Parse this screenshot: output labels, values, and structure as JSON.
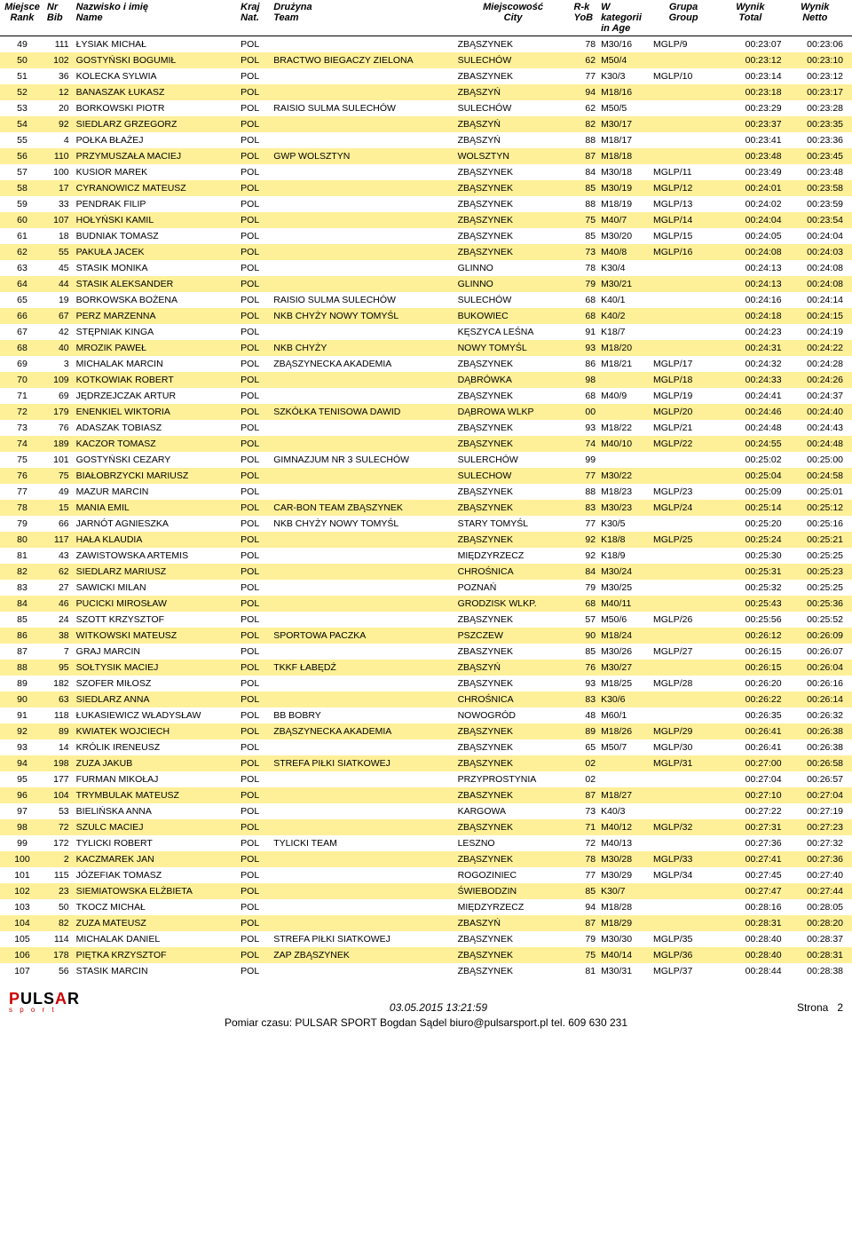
{
  "headers": {
    "rank": {
      "l1": "Miejsce",
      "l2": "Rank"
    },
    "bib": {
      "l1": "Nr",
      "l2": "Bib"
    },
    "name": {
      "l1": "Nazwisko i imię",
      "l2": "Name"
    },
    "nat": {
      "l1": "Kraj",
      "l2": "Nat."
    },
    "team": {
      "l1": "Drużyna",
      "l2": "Team"
    },
    "city": {
      "l1": "Miejscowość",
      "l2": "City"
    },
    "yob": {
      "l1": "R-k",
      "l2": "YoB"
    },
    "age": {
      "l1": "W kategorii",
      "l2": "in Age"
    },
    "grp": {
      "l1": "Grupa",
      "l2": "Group"
    },
    "tot": {
      "l1": "Wynik",
      "l2": "Total"
    },
    "net": {
      "l1": "Wynik",
      "l2": "Netto"
    }
  },
  "rows": [
    {
      "rank": "49",
      "bib": "111",
      "name": "ŁYSIAK MICHAŁ",
      "nat": "POL",
      "team": "",
      "city": "ZBĄSZYNEK",
      "yob": "78",
      "age": "M30/16",
      "grp": "MGLP/9",
      "tot": "00:23:07",
      "net": "00:23:06"
    },
    {
      "rank": "50",
      "bib": "102",
      "name": "GOSTYŃSKI BOGUMIŁ",
      "nat": "POL",
      "team": "BRACTWO BIEGACZY ZIELONA",
      "city": "SULECHÓW",
      "yob": "62",
      "age": "M50/4",
      "grp": "",
      "tot": "00:23:12",
      "net": "00:23:10"
    },
    {
      "rank": "51",
      "bib": "36",
      "name": "KOLECKA SYLWIA",
      "nat": "POL",
      "team": "",
      "city": "ZBASZYNEK",
      "yob": "77",
      "age": "K30/3",
      "grp": "MGLP/10",
      "tot": "00:23:14",
      "net": "00:23:12"
    },
    {
      "rank": "52",
      "bib": "12",
      "name": "BANASZAK ŁUKASZ",
      "nat": "POL",
      "team": "",
      "city": "ZBĄSZYŃ",
      "yob": "94",
      "age": "M18/16",
      "grp": "",
      "tot": "00:23:18",
      "net": "00:23:17"
    },
    {
      "rank": "53",
      "bib": "20",
      "name": "BORKOWSKI PIOTR",
      "nat": "POL",
      "team": "RAISIO SULMA SULECHÓW",
      "city": "SULECHÓW",
      "yob": "62",
      "age": "M50/5",
      "grp": "",
      "tot": "00:23:29",
      "net": "00:23:28"
    },
    {
      "rank": "54",
      "bib": "92",
      "name": "SIEDLARZ GRZEGORZ",
      "nat": "POL",
      "team": "",
      "city": "ZBĄSZYŃ",
      "yob": "82",
      "age": "M30/17",
      "grp": "",
      "tot": "00:23:37",
      "net": "00:23:35"
    },
    {
      "rank": "55",
      "bib": "4",
      "name": "POŁKA BŁAŻEJ",
      "nat": "POL",
      "team": "",
      "city": "ZBĄSZYŃ",
      "yob": "88",
      "age": "M18/17",
      "grp": "",
      "tot": "00:23:41",
      "net": "00:23:36"
    },
    {
      "rank": "56",
      "bib": "110",
      "name": "PRZYMUSZAŁA MACIEJ",
      "nat": "POL",
      "team": "GWP WOLSZTYN",
      "city": "WOLSZTYN",
      "yob": "87",
      "age": "M18/18",
      "grp": "",
      "tot": "00:23:48",
      "net": "00:23:45"
    },
    {
      "rank": "57",
      "bib": "100",
      "name": "KUSIOR MAREK",
      "nat": "POL",
      "team": "",
      "city": "ZBĄSZYNEK",
      "yob": "84",
      "age": "M30/18",
      "grp": "MGLP/11",
      "tot": "00:23:49",
      "net": "00:23:48"
    },
    {
      "rank": "58",
      "bib": "17",
      "name": "CYRANOWICZ MATEUSZ",
      "nat": "POL",
      "team": "",
      "city": "ZBĄSZYNEK",
      "yob": "85",
      "age": "M30/19",
      "grp": "MGLP/12",
      "tot": "00:24:01",
      "net": "00:23:58"
    },
    {
      "rank": "59",
      "bib": "33",
      "name": "PENDRAK FILIP",
      "nat": "POL",
      "team": "",
      "city": "ZBĄSZYNEK",
      "yob": "88",
      "age": "M18/19",
      "grp": "MGLP/13",
      "tot": "00:24:02",
      "net": "00:23:59"
    },
    {
      "rank": "60",
      "bib": "107",
      "name": "HOŁYŃSKI KAMIL",
      "nat": "POL",
      "team": "",
      "city": "ZBĄSZYNEK",
      "yob": "75",
      "age": "M40/7",
      "grp": "MGLP/14",
      "tot": "00:24:04",
      "net": "00:23:54"
    },
    {
      "rank": "61",
      "bib": "18",
      "name": "BUDNIAK TOMASZ",
      "nat": "POL",
      "team": "",
      "city": "ZBĄSZYNEK",
      "yob": "85",
      "age": "M30/20",
      "grp": "MGLP/15",
      "tot": "00:24:05",
      "net": "00:24:04"
    },
    {
      "rank": "62",
      "bib": "55",
      "name": "PAKUŁA JACEK",
      "nat": "POL",
      "team": "",
      "city": "ZBĄSZYNEK",
      "yob": "73",
      "age": "M40/8",
      "grp": "MGLP/16",
      "tot": "00:24:08",
      "net": "00:24:03"
    },
    {
      "rank": "63",
      "bib": "45",
      "name": "STASIK MONIKA",
      "nat": "POL",
      "team": "",
      "city": "GLINNO",
      "yob": "78",
      "age": "K30/4",
      "grp": "",
      "tot": "00:24:13",
      "net": "00:24:08"
    },
    {
      "rank": "64",
      "bib": "44",
      "name": "STASIK ALEKSANDER",
      "nat": "POL",
      "team": "",
      "city": "GLINNO",
      "yob": "79",
      "age": "M30/21",
      "grp": "",
      "tot": "00:24:13",
      "net": "00:24:08"
    },
    {
      "rank": "65",
      "bib": "19",
      "name": "BORKOWSKA BOŻENA",
      "nat": "POL",
      "team": "RAISIO SULMA SULECHÓW",
      "city": "SULECHÓW",
      "yob": "68",
      "age": "K40/1",
      "grp": "",
      "tot": "00:24:16",
      "net": "00:24:14"
    },
    {
      "rank": "66",
      "bib": "67",
      "name": "PERZ MARZENNA",
      "nat": "POL",
      "team": "NKB CHYŻY NOWY TOMYŚL",
      "city": "BUKOWIEC",
      "yob": "68",
      "age": "K40/2",
      "grp": "",
      "tot": "00:24:18",
      "net": "00:24:15"
    },
    {
      "rank": "67",
      "bib": "42",
      "name": "STĘPNIAK KINGA",
      "nat": "POL",
      "team": "",
      "city": "KĘSZYCA LEŚNA",
      "yob": "91",
      "age": "K18/7",
      "grp": "",
      "tot": "00:24:23",
      "net": "00:24:19"
    },
    {
      "rank": "68",
      "bib": "40",
      "name": "MROZIK PAWEŁ",
      "nat": "POL",
      "team": "NKB CHYŻY",
      "city": "NOWY TOMYŚL",
      "yob": "93",
      "age": "M18/20",
      "grp": "",
      "tot": "00:24:31",
      "net": "00:24:22"
    },
    {
      "rank": "69",
      "bib": "3",
      "name": "MICHALAK MARCIN",
      "nat": "POL",
      "team": "ZBĄSZYNECKA AKADEMIA",
      "city": "ZBĄSZYNEK",
      "yob": "86",
      "age": "M18/21",
      "grp": "MGLP/17",
      "tot": "00:24:32",
      "net": "00:24:28"
    },
    {
      "rank": "70",
      "bib": "109",
      "name": "KOTKOWIAK ROBERT",
      "nat": "POL",
      "team": "",
      "city": "DĄBRÓWKA",
      "yob": "98",
      "age": "",
      "grp": "MGLP/18",
      "tot": "00:24:33",
      "net": "00:24:26"
    },
    {
      "rank": "71",
      "bib": "69",
      "name": "JĘDRZEJCZAK ARTUR",
      "nat": "POL",
      "team": "",
      "city": "ZBĄSZYNEK",
      "yob": "68",
      "age": "M40/9",
      "grp": "MGLP/19",
      "tot": "00:24:41",
      "net": "00:24:37"
    },
    {
      "rank": "72",
      "bib": "179",
      "name": "ENENKIEL WIKTORIA",
      "nat": "POL",
      "team": "SZKÓŁKA TENISOWA DAWID",
      "city": "DĄBROWA WLKP",
      "yob": "00",
      "age": "",
      "grp": "MGLP/20",
      "tot": "00:24:46",
      "net": "00:24:40"
    },
    {
      "rank": "73",
      "bib": "76",
      "name": "ADASZAK TOBIASZ",
      "nat": "POL",
      "team": "",
      "city": "ZBĄSZYNEK",
      "yob": "93",
      "age": "M18/22",
      "grp": "MGLP/21",
      "tot": "00:24:48",
      "net": "00:24:43"
    },
    {
      "rank": "74",
      "bib": "189",
      "name": "KACZOR TOMASZ",
      "nat": "POL",
      "team": "",
      "city": "ZBĄSZYNEK",
      "yob": "74",
      "age": "M40/10",
      "grp": "MGLP/22",
      "tot": "00:24:55",
      "net": "00:24:48"
    },
    {
      "rank": "75",
      "bib": "101",
      "name": "GOSTYŃSKI CEZARY",
      "nat": "POL",
      "team": "GIMNAZJUM NR 3 SULECHÓW",
      "city": "SULERCHÓW",
      "yob": "99",
      "age": "",
      "grp": "",
      "tot": "00:25:02",
      "net": "00:25:00"
    },
    {
      "rank": "76",
      "bib": "75",
      "name": "BIAŁOBRZYCKI MARIUSZ",
      "nat": "POL",
      "team": "",
      "city": "SULECHOW",
      "yob": "77",
      "age": "M30/22",
      "grp": "",
      "tot": "00:25:04",
      "net": "00:24:58"
    },
    {
      "rank": "77",
      "bib": "49",
      "name": "MAZUR MARCIN",
      "nat": "POL",
      "team": "",
      "city": "ZBĄSZYNEK",
      "yob": "88",
      "age": "M18/23",
      "grp": "MGLP/23",
      "tot": "00:25:09",
      "net": "00:25:01"
    },
    {
      "rank": "78",
      "bib": "15",
      "name": "MANIA EMIL",
      "nat": "POL",
      "team": "CAR-BON TEAM ZBĄSZYNEK",
      "city": "ZBĄSZYNEK",
      "yob": "83",
      "age": "M30/23",
      "grp": "MGLP/24",
      "tot": "00:25:14",
      "net": "00:25:12"
    },
    {
      "rank": "79",
      "bib": "66",
      "name": "JARNÓT AGNIESZKA",
      "nat": "POL",
      "team": "NKB CHYŻY NOWY TOMYŚL",
      "city": "STARY TOMYŚL",
      "yob": "77",
      "age": "K30/5",
      "grp": "",
      "tot": "00:25:20",
      "net": "00:25:16"
    },
    {
      "rank": "80",
      "bib": "117",
      "name": "HAŁA KLAUDIA",
      "nat": "POL",
      "team": "",
      "city": "ZBĄSZYNEK",
      "yob": "92",
      "age": "K18/8",
      "grp": "MGLP/25",
      "tot": "00:25:24",
      "net": "00:25:21"
    },
    {
      "rank": "81",
      "bib": "43",
      "name": "ZAWISTOWSKA ARTEMIS",
      "nat": "POL",
      "team": "",
      "city": "MIĘDZYRZECZ",
      "yob": "92",
      "age": "K18/9",
      "grp": "",
      "tot": "00:25:30",
      "net": "00:25:25"
    },
    {
      "rank": "82",
      "bib": "62",
      "name": "SIEDLARZ MARIUSZ",
      "nat": "POL",
      "team": "",
      "city": "CHROŚNICA",
      "yob": "84",
      "age": "M30/24",
      "grp": "",
      "tot": "00:25:31",
      "net": "00:25:23"
    },
    {
      "rank": "83",
      "bib": "27",
      "name": "SAWICKI MILAN",
      "nat": "POL",
      "team": "",
      "city": "POZNAŃ",
      "yob": "79",
      "age": "M30/25",
      "grp": "",
      "tot": "00:25:32",
      "net": "00:25:25"
    },
    {
      "rank": "84",
      "bib": "46",
      "name": "PUCICKI MIROSŁAW",
      "nat": "POL",
      "team": "",
      "city": "GRODZISK WLKP.",
      "yob": "68",
      "age": "M40/11",
      "grp": "",
      "tot": "00:25:43",
      "net": "00:25:36"
    },
    {
      "rank": "85",
      "bib": "24",
      "name": "SZOTT KRZYSZTOF",
      "nat": "POL",
      "team": "",
      "city": "ZBĄSZYNEK",
      "yob": "57",
      "age": "M50/6",
      "grp": "MGLP/26",
      "tot": "00:25:56",
      "net": "00:25:52"
    },
    {
      "rank": "86",
      "bib": "38",
      "name": "WITKOWSKI MATEUSZ",
      "nat": "POL",
      "team": "SPORTOWA PACZKA",
      "city": "PSZCZEW",
      "yob": "90",
      "age": "M18/24",
      "grp": "",
      "tot": "00:26:12",
      "net": "00:26:09"
    },
    {
      "rank": "87",
      "bib": "7",
      "name": "GRAJ MARCIN",
      "nat": "POL",
      "team": "",
      "city": "ZBASZYNEK",
      "yob": "85",
      "age": "M30/26",
      "grp": "MGLP/27",
      "tot": "00:26:15",
      "net": "00:26:07"
    },
    {
      "rank": "88",
      "bib": "95",
      "name": "SOŁTYSIK MACIEJ",
      "nat": "POL",
      "team": "TKKF ŁABĘDŹ",
      "city": "ZBĄSZYŃ",
      "yob": "76",
      "age": "M30/27",
      "grp": "",
      "tot": "00:26:15",
      "net": "00:26:04"
    },
    {
      "rank": "89",
      "bib": "182",
      "name": "SZOFER MIŁOSZ",
      "nat": "POL",
      "team": "",
      "city": "ZBĄSZYNEK",
      "yob": "93",
      "age": "M18/25",
      "grp": "MGLP/28",
      "tot": "00:26:20",
      "net": "00:26:16"
    },
    {
      "rank": "90",
      "bib": "63",
      "name": "SIEDLARZ ANNA",
      "nat": "POL",
      "team": "",
      "city": "CHROŚNICA",
      "yob": "83",
      "age": "K30/6",
      "grp": "",
      "tot": "00:26:22",
      "net": "00:26:14"
    },
    {
      "rank": "91",
      "bib": "118",
      "name": "ŁUKASIEWICZ WŁADYSŁAW",
      "nat": "POL",
      "team": "BB BOBRY",
      "city": "NOWOGRÓD",
      "yob": "48",
      "age": "M60/1",
      "grp": "",
      "tot": "00:26:35",
      "net": "00:26:32"
    },
    {
      "rank": "92",
      "bib": "89",
      "name": "KWIATEK WOJCIECH",
      "nat": "POL",
      "team": "ZBĄSZYNECKA AKADEMIA",
      "city": "ZBĄSZYNEK",
      "yob": "89",
      "age": "M18/26",
      "grp": "MGLP/29",
      "tot": "00:26:41",
      "net": "00:26:38"
    },
    {
      "rank": "93",
      "bib": "14",
      "name": "KRÓLIK IRENEUSZ",
      "nat": "POL",
      "team": "",
      "city": "ZBĄSZYNEK",
      "yob": "65",
      "age": "M50/7",
      "grp": "MGLP/30",
      "tot": "00:26:41",
      "net": "00:26:38"
    },
    {
      "rank": "94",
      "bib": "198",
      "name": "ZUZA JAKUB",
      "nat": "POL",
      "team": "STREFA PIŁKI SIATKOWEJ",
      "city": "ZBĄSZYNEK",
      "yob": "02",
      "age": "",
      "grp": "MGLP/31",
      "tot": "00:27:00",
      "net": "00:26:58"
    },
    {
      "rank": "95",
      "bib": "177",
      "name": "FURMAN MIKOŁAJ",
      "nat": "POL",
      "team": "",
      "city": "PRZYPROSTYNIA",
      "yob": "02",
      "age": "",
      "grp": "",
      "tot": "00:27:04",
      "net": "00:26:57"
    },
    {
      "rank": "96",
      "bib": "104",
      "name": "TRYMBULAK MATEUSZ",
      "nat": "POL",
      "team": "",
      "city": "ZBASZYNEK",
      "yob": "87",
      "age": "M18/27",
      "grp": "",
      "tot": "00:27:10",
      "net": "00:27:04"
    },
    {
      "rank": "97",
      "bib": "53",
      "name": "BIELIŃSKA ANNA",
      "nat": "POL",
      "team": "",
      "city": "KARGOWA",
      "yob": "73",
      "age": "K40/3",
      "grp": "",
      "tot": "00:27:22",
      "net": "00:27:19"
    },
    {
      "rank": "98",
      "bib": "72",
      "name": "SZULC MACIEJ",
      "nat": "POL",
      "team": "",
      "city": "ZBĄSZYNEK",
      "yob": "71",
      "age": "M40/12",
      "grp": "MGLP/32",
      "tot": "00:27:31",
      "net": "00:27:23"
    },
    {
      "rank": "99",
      "bib": "172",
      "name": "TYLICKI ROBERT",
      "nat": "POL",
      "team": "TYLICKI TEAM",
      "city": "LESZNO",
      "yob": "72",
      "age": "M40/13",
      "grp": "",
      "tot": "00:27:36",
      "net": "00:27:32"
    },
    {
      "rank": "100",
      "bib": "2",
      "name": "KACZMAREK JAN",
      "nat": "POL",
      "team": "",
      "city": "ZBĄSZYNEK",
      "yob": "78",
      "age": "M30/28",
      "grp": "MGLP/33",
      "tot": "00:27:41",
      "net": "00:27:36"
    },
    {
      "rank": "101",
      "bib": "115",
      "name": "JÓZEFIAK TOMASZ",
      "nat": "POL",
      "team": "",
      "city": "ROGOZINIEC",
      "yob": "77",
      "age": "M30/29",
      "grp": "MGLP/34",
      "tot": "00:27:45",
      "net": "00:27:40"
    },
    {
      "rank": "102",
      "bib": "23",
      "name": "SIEMIATOWSKA ELŻBIETA",
      "nat": "POL",
      "team": "",
      "city": "ŚWIEBODZIN",
      "yob": "85",
      "age": "K30/7",
      "grp": "",
      "tot": "00:27:47",
      "net": "00:27:44"
    },
    {
      "rank": "103",
      "bib": "50",
      "name": "TKOCZ MICHAŁ",
      "nat": "POL",
      "team": "",
      "city": "MIĘDZYRZECZ",
      "yob": "94",
      "age": "M18/28",
      "grp": "",
      "tot": "00:28:16",
      "net": "00:28:05"
    },
    {
      "rank": "104",
      "bib": "82",
      "name": "ZUZA MATEUSZ",
      "nat": "POL",
      "team": "",
      "city": "ZBASZYŃ",
      "yob": "87",
      "age": "M18/29",
      "grp": "",
      "tot": "00:28:31",
      "net": "00:28:20"
    },
    {
      "rank": "105",
      "bib": "114",
      "name": "MICHALAK DANIEL",
      "nat": "POL",
      "team": "STREFA PIŁKI SIATKOWEJ",
      "city": "ZBĄSZYNEK",
      "yob": "79",
      "age": "M30/30",
      "grp": "MGLP/35",
      "tot": "00:28:40",
      "net": "00:28:37"
    },
    {
      "rank": "106",
      "bib": "178",
      "name": "PIĘTKA KRZYSZTOF",
      "nat": "POL",
      "team": "ZAP ZBĄSZYNEK",
      "city": "ZBĄSZYNEK",
      "yob": "75",
      "age": "M40/14",
      "grp": "MGLP/36",
      "tot": "00:28:40",
      "net": "00:28:31"
    },
    {
      "rank": "107",
      "bib": "56",
      "name": "STASIK MARCIN",
      "nat": "POL",
      "team": "",
      "city": "ZBĄSZYNEK",
      "yob": "81",
      "age": "M30/31",
      "grp": "MGLP/37",
      "tot": "00:28:44",
      "net": "00:28:38"
    }
  ],
  "footer": {
    "timestamp": "03.05.2015 13:21:59",
    "page_label": "Strona",
    "page_num": "2",
    "credits": "Pomiar czasu: PULSAR SPORT Bogdan Sądel biuro@pulsarsport.pl tel. 609 630 231"
  },
  "highlight_color": "#fef098"
}
